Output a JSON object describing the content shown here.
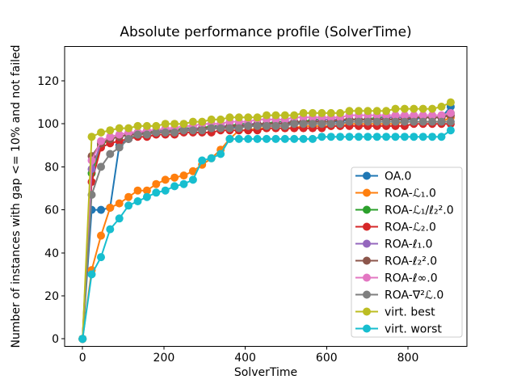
{
  "figure": {
    "title": "Absolute performance profile (SolverTime)",
    "xlabel": "SolverTime",
    "ylabel": "Number of instances with gap <= 10% and not failed"
  },
  "chart_data": {
    "type": "line",
    "title": "Absolute performance profile (SolverTime)",
    "xlabel": "SolverTime",
    "ylabel": "Number of instances with gap <= 10% and not failed",
    "xlim": [
      -44,
      945
    ],
    "ylim": [
      -3.5,
      136
    ],
    "xticks": [
      0,
      200,
      400,
      600,
      800
    ],
    "yticks": [
      0,
      20,
      40,
      60,
      80,
      100,
      120
    ],
    "grid": false,
    "marker": "o",
    "legend_position": "lower right inside",
    "legend_border_color": "#cccccc",
    "x": [
      0,
      22.6,
      45.3,
      67.9,
      90.5,
      113.1,
      135.8,
      158.4,
      181.0,
      203.6,
      226.3,
      248.9,
      271.5,
      294.1,
      316.8,
      339.4,
      362.0,
      384.6,
      407.3,
      429.9,
      452.5,
      475.1,
      497.8,
      520.4,
      543.0,
      565.6,
      588.3,
      610.9,
      633.5,
      656.1,
      678.8,
      701.4,
      724.0,
      746.6,
      769.3,
      791.9,
      814.5,
      837.1,
      859.8,
      882.4,
      905.0
    ],
    "series": [
      {
        "name": "OA.0",
        "color": "#1f77b4",
        "values": [
          0,
          60,
          60,
          61,
          90,
          93,
          95,
          95,
          96,
          96,
          97,
          97,
          97,
          98,
          98,
          98,
          98,
          99,
          99,
          99,
          100,
          100,
          100,
          100,
          101,
          101,
          101,
          101,
          101,
          102,
          102,
          102,
          102,
          102,
          102,
          102,
          102,
          103,
          103,
          103,
          108
        ]
      },
      {
        "name": "ROA-ℒ₁.0",
        "color": "#ff7f0e",
        "values": [
          0,
          32,
          48,
          61,
          63,
          66,
          69,
          69,
          72,
          74,
          75,
          76,
          78,
          81,
          84,
          88,
          93,
          97,
          97,
          98,
          98,
          98,
          98,
          98,
          99,
          99,
          99,
          99,
          99,
          100,
          100,
          100,
          100,
          100,
          100,
          101,
          101,
          101,
          101,
          101,
          103
        ]
      },
      {
        "name": "ROA-ℒ₁/ℓ₂².0",
        "color": "#2ca02c",
        "values": [
          0,
          77,
          90,
          93,
          94,
          95,
          96,
          96,
          97,
          97,
          97,
          98,
          98,
          98,
          99,
          99,
          99,
          100,
          100,
          100,
          100,
          101,
          101,
          101,
          101,
          102,
          102,
          102,
          102,
          102,
          102,
          102,
          103,
          103,
          103,
          103,
          103,
          103,
          103,
          103,
          105
        ]
      },
      {
        "name": "ROA-ℒ₂.0",
        "color": "#d62728",
        "values": [
          0,
          73,
          89,
          91,
          92,
          93,
          94,
          94,
          95,
          95,
          95,
          96,
          96,
          96,
          96,
          97,
          97,
          97,
          97,
          97,
          98,
          98,
          98,
          98,
          98,
          98,
          98,
          99,
          99,
          99,
          99,
          99,
          99,
          99,
          99,
          99,
          100,
          100,
          100,
          100,
          100
        ]
      },
      {
        "name": "ROA-ℓ₁.0",
        "color": "#9467bd",
        "values": [
          0,
          79,
          91,
          93,
          94,
          95,
          96,
          96,
          96,
          97,
          97,
          97,
          98,
          98,
          98,
          99,
          99,
          99,
          100,
          100,
          100,
          100,
          101,
          101,
          101,
          101,
          102,
          102,
          102,
          102,
          102,
          102,
          102,
          103,
          103,
          103,
          103,
          103,
          103,
          103,
          104
        ]
      },
      {
        "name": "ROA-ℓ₂².0",
        "color": "#8c564b",
        "values": [
          0,
          85,
          91,
          93,
          94,
          95,
          95,
          96,
          96,
          96,
          97,
          97,
          97,
          98,
          98,
          98,
          99,
          99,
          99,
          100,
          100,
          100,
          100,
          101,
          101,
          101,
          101,
          101,
          102,
          102,
          102,
          102,
          102,
          102,
          102,
          102,
          103,
          103,
          103,
          103,
          104
        ]
      },
      {
        "name": "ROA-ℓ∞.0",
        "color": "#e377c2",
        "values": [
          0,
          83,
          92,
          94,
          95,
          96,
          96,
          97,
          97,
          98,
          98,
          99,
          99,
          100,
          100,
          100,
          101,
          101,
          101,
          102,
          102,
          102,
          102,
          103,
          103,
          103,
          103,
          103,
          103,
          104,
          104,
          104,
          104,
          104,
          104,
          104,
          104,
          104,
          104,
          104,
          105
        ]
      },
      {
        "name": "ROA-∇²ℒ.0",
        "color": "#7f7f7f",
        "values": [
          0,
          67,
          80,
          86,
          89,
          93,
          95,
          95,
          96,
          96,
          96,
          97,
          97,
          97,
          98,
          98,
          98,
          98,
          99,
          99,
          99,
          99,
          99,
          100,
          100,
          100,
          100,
          100,
          100,
          101,
          101,
          101,
          101,
          101,
          101,
          101,
          101,
          101,
          101,
          101,
          101
        ]
      },
      {
        "name": "virt. best",
        "color": "#bcbd22",
        "values": [
          0,
          94,
          96,
          97,
          98,
          98,
          99,
          99,
          99,
          100,
          100,
          100,
          101,
          101,
          102,
          102,
          103,
          103,
          103,
          103,
          104,
          104,
          104,
          104,
          105,
          105,
          105,
          105,
          105,
          106,
          106,
          106,
          106,
          106,
          107,
          107,
          107,
          107,
          107,
          108,
          110
        ]
      },
      {
        "name": "virt. worst",
        "color": "#17becf",
        "values": [
          0,
          30,
          38,
          51,
          56,
          62,
          64,
          66,
          68,
          69,
          71,
          72,
          74,
          83,
          84,
          86,
          93,
          93,
          93,
          93,
          93,
          93,
          93,
          93,
          93,
          93,
          94,
          94,
          94,
          94,
          94,
          94,
          94,
          94,
          94,
          94,
          94,
          94,
          94,
          94,
          97
        ]
      }
    ]
  }
}
